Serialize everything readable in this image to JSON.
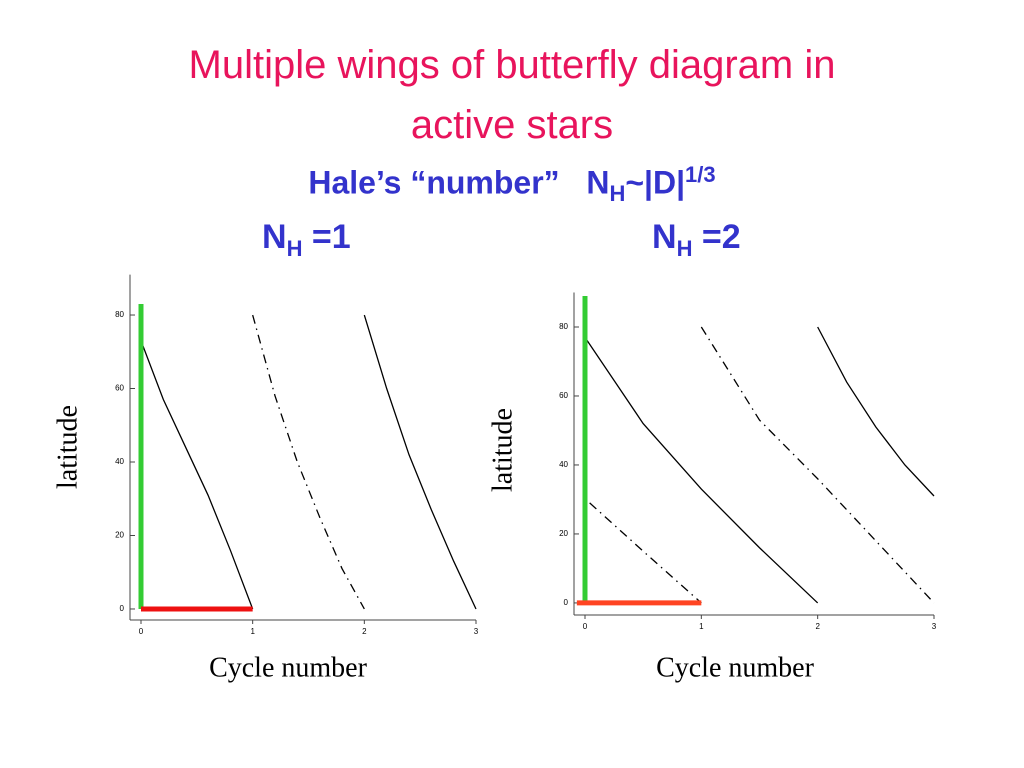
{
  "title_lines": [
    "Multiple wings of butterfly diagram in",
    "active stars"
  ],
  "subtitle": {
    "text": "Hale’s “number”",
    "symbol": "N",
    "subscript": "H",
    "relation": "~|D|",
    "exponent": "1/3"
  },
  "chart_data": [
    {
      "type": "line",
      "title": "N",
      "title_subscript": "H",
      "title_suffix": "=1",
      "x_label": "Cycle number",
      "y_label": "latitude",
      "xlim": [
        0,
        3
      ],
      "ylim": [
        -3,
        91
      ],
      "xticks": [
        0,
        1,
        2,
        3
      ],
      "yticks": [
        0,
        20,
        40,
        60,
        80
      ],
      "series": [
        {
          "x": [
            0,
            0.2,
            0.4,
            0.6,
            0.8,
            1
          ],
          "values": [
            73,
            57,
            44,
            31,
            16,
            0
          ],
          "color": "#000000",
          "dash": "solid",
          "width": 1.3
        },
        {
          "x": [
            1,
            1.2,
            1.4,
            1.6,
            1.8,
            2
          ],
          "values": [
            80,
            58,
            40,
            25,
            11,
            0
          ],
          "color": "#000000",
          "dash": "dashdot",
          "width": 1.3
        },
        {
          "x": [
            2,
            2.2,
            2.4,
            2.6,
            2.8,
            3
          ],
          "values": [
            80,
            60,
            42,
            27,
            13,
            0
          ],
          "color": "#000000",
          "dash": "solid",
          "width": 1.3
        },
        {
          "x": [
            0,
            0
          ],
          "values": [
            0,
            83
          ],
          "color": "#33cc33",
          "dash": "solid",
          "width": 5
        },
        {
          "x": [
            0,
            1
          ],
          "values": [
            0,
            0
          ],
          "color": "#ee1111",
          "dash": "solid",
          "width": 5
        }
      ]
    },
    {
      "type": "line",
      "title": "N",
      "title_subscript": "H",
      "title_suffix": "=2",
      "x_label": "Cycle number",
      "y_label": "latitude",
      "xlim": [
        0,
        3
      ],
      "ylim": [
        -3.5,
        90
      ],
      "xticks": [
        0,
        1,
        2,
        3
      ],
      "yticks": [
        0,
        20,
        40,
        60,
        80
      ],
      "series": [
        {
          "x": [
            0,
            0.5,
            1,
            1.5,
            2
          ],
          "values": [
            77,
            52,
            33,
            16,
            0
          ],
          "color": "#000000",
          "dash": "solid",
          "width": 1.3
        },
        {
          "x": [
            0.04,
            0.5,
            1
          ],
          "values": [
            29,
            15,
            0
          ],
          "color": "#000000",
          "dash": "dashdot",
          "width": 1.3
        },
        {
          "x": [
            1,
            1.5,
            2,
            2.5,
            3
          ],
          "values": [
            80,
            53,
            36,
            18,
            0
          ],
          "color": "#000000",
          "dash": "dashdot",
          "width": 1.3
        },
        {
          "x": [
            2,
            2.25,
            2.5,
            2.75,
            3
          ],
          "values": [
            80,
            64,
            51,
            40,
            31
          ],
          "color": "#000000",
          "dash": "solid",
          "width": 1.3
        },
        {
          "x": [
            0,
            0
          ],
          "values": [
            0,
            89
          ],
          "color": "#33cc33",
          "dash": "solid",
          "width": 5
        },
        {
          "x": [
            -0.07,
            1
          ],
          "values": [
            0,
            0
          ],
          "color": "#ff4422",
          "dash": "solid",
          "width": 5
        }
      ]
    }
  ]
}
